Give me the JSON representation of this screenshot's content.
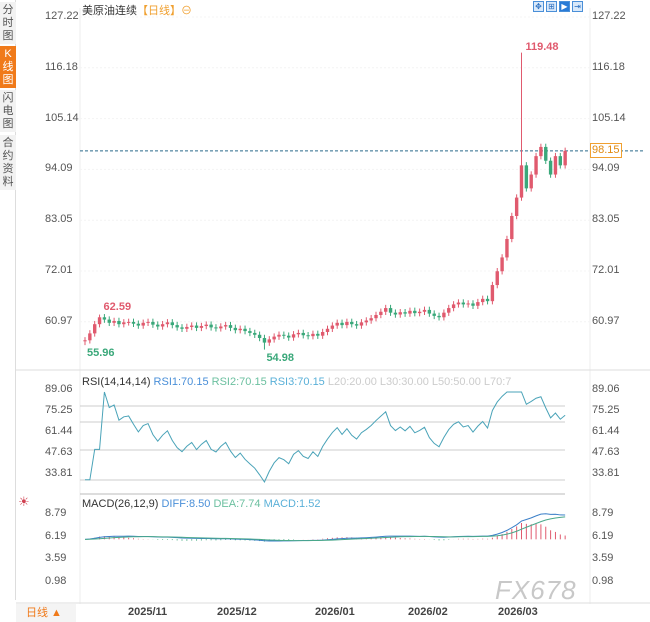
{
  "sidebar": {
    "tabs": [
      "分时图",
      "K线图",
      "闪电图",
      "合约资料"
    ]
  },
  "header": {
    "title": "美原油连续",
    "period": "【日线】",
    "toggle_icon": "⊖"
  },
  "toolbar": {
    "icons": [
      "move-icon",
      "zoom-in-icon",
      "play-icon",
      "export-icon"
    ]
  },
  "price_axis": [
    "127.22",
    "116.18",
    "105.14",
    "94.09",
    "83.05",
    "72.01",
    "60.97"
  ],
  "last_price": "98.15",
  "annotations": {
    "high": "119.48",
    "early_high": "62.59",
    "start_low": "55.96",
    "low": "54.98"
  },
  "rsi": {
    "label": "RSI(14,14,14)",
    "rsi1": "RSI1:70.15",
    "rsi2": "RSI2:70.15",
    "rsi3": "RSI3:70.15",
    "l20": "L20:20.00",
    "l30": "L30:30.00",
    "l50": "L50:50.00",
    "l70": "L70:7",
    "axis": [
      "89.06",
      "75.25",
      "61.44",
      "47.63",
      "33.81"
    ]
  },
  "macd": {
    "label": "MACD(26,12,9)",
    "diff": "DIFF:8.50",
    "dea": "DEA:7.74",
    "macd": "MACD:1.52",
    "axis": [
      "8.79",
      "6.19",
      "3.59",
      "0.98"
    ]
  },
  "dates": [
    "2025/11",
    "2025/12",
    "2026/01",
    "2026/02",
    "2026/03"
  ],
  "period_selector": "日线 ▲",
  "watermark": "FX678",
  "colors": {
    "up": "#e05a6e",
    "down": "#3aa87a",
    "accent": "#f07a1a"
  },
  "chart_data": {
    "type": "candlestick",
    "closes": [
      57.0,
      58.5,
      60.5,
      62.0,
      61.5,
      60.8,
      61.2,
      60.5,
      60.9,
      61.0,
      60.6,
      60.2,
      60.8,
      61.0,
      60.4,
      60.0,
      60.5,
      60.9,
      60.3,
      59.8,
      59.5,
      59.9,
      60.2,
      59.7,
      60.1,
      60.4,
      59.8,
      59.6,
      60.0,
      60.3,
      59.7,
      59.2,
      59.5,
      59.0,
      58.6,
      58.2,
      57.5,
      56.5,
      57.2,
      57.8,
      58.2,
      58.0,
      57.6,
      58.3,
      58.6,
      58.1,
      57.9,
      58.4,
      58.0,
      58.8,
      59.5,
      60.2,
      60.8,
      60.3,
      61.0,
      60.5,
      60.2,
      60.9,
      61.3,
      61.8,
      62.5,
      63.2,
      64.0,
      63.0,
      62.6,
      63.1,
      62.8,
      63.4,
      62.9,
      63.2,
      63.6,
      62.8,
      62.3,
      62.0,
      63.0,
      64.0,
      64.8,
      65.2,
      64.8,
      65.0,
      64.5,
      65.3,
      66.0,
      65.5,
      69.0,
      72.0,
      75.0,
      79.0,
      84.0,
      88.0,
      95.0,
      90.0,
      93.0,
      97.0,
      99.0,
      96.0,
      93.0,
      97.0,
      95.0,
      98.15
    ],
    "high_index": 90,
    "high_value": 119.48,
    "price_range": [
      60.97,
      127.22
    ]
  }
}
